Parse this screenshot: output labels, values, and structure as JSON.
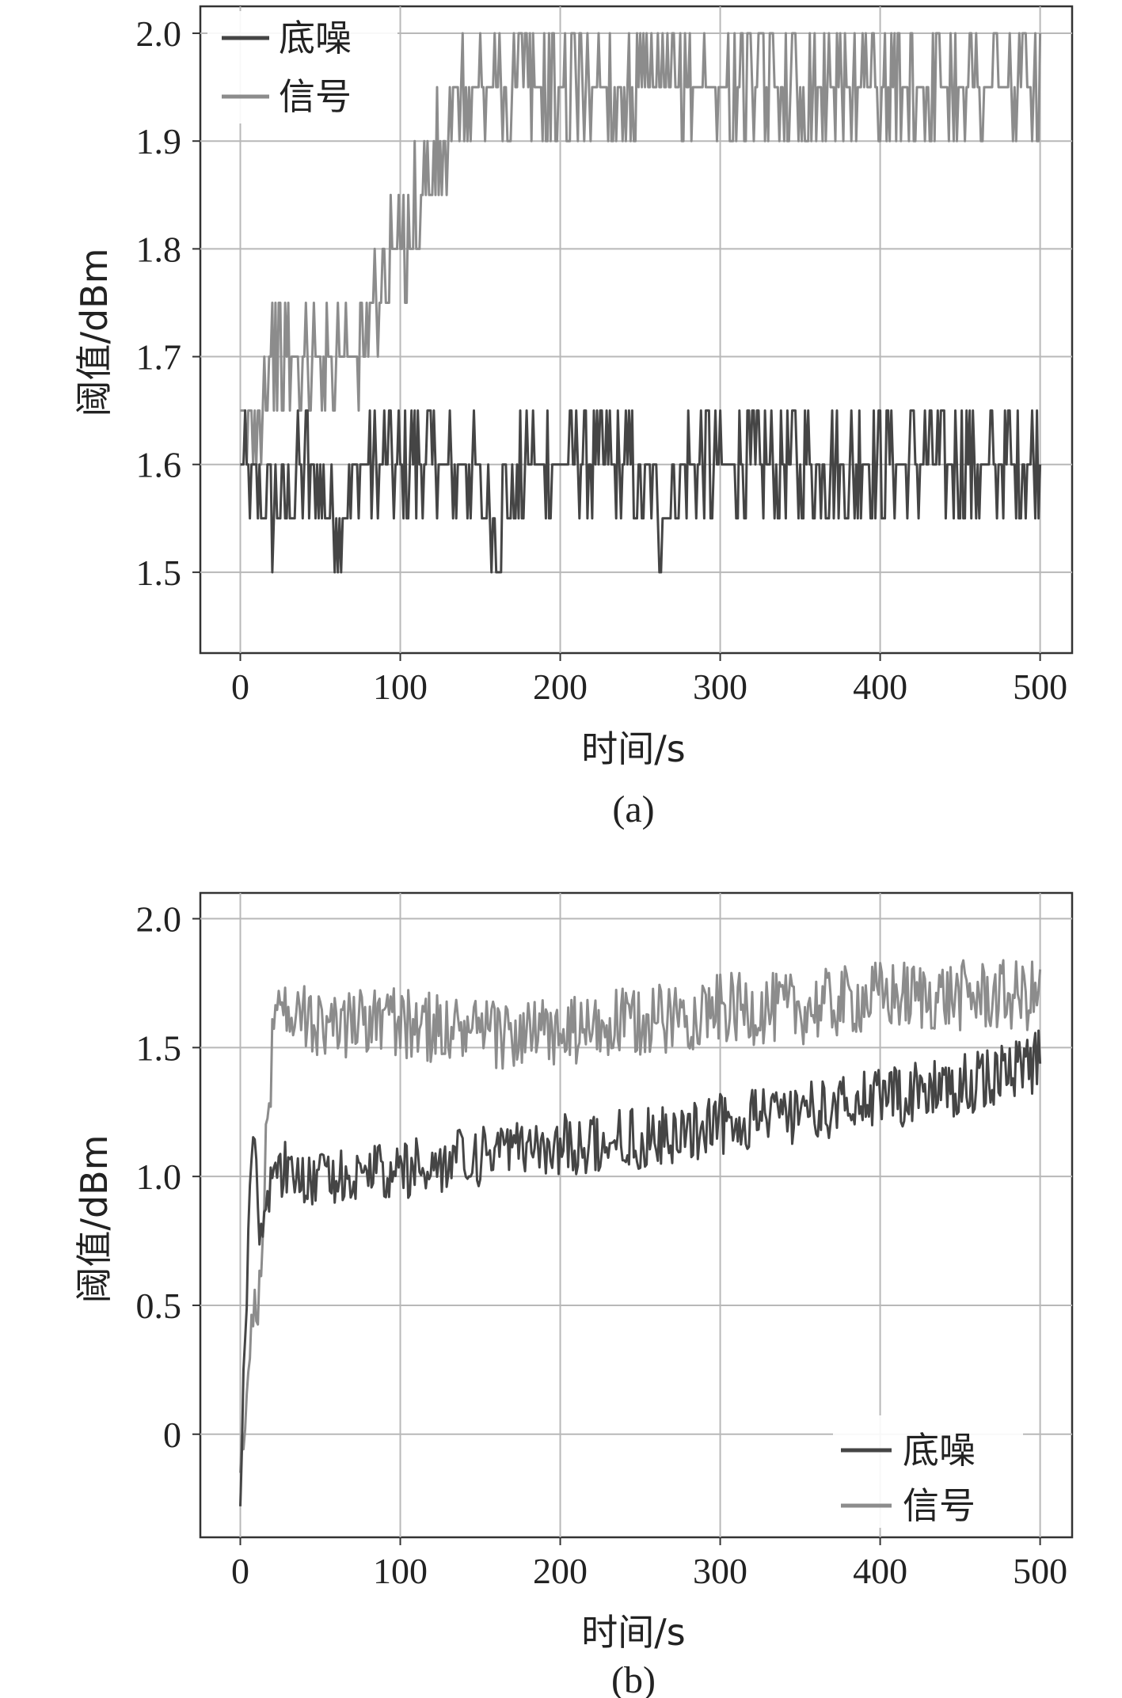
{
  "chart_data": [
    {
      "type": "line",
      "panel": "a",
      "caption": "(a)",
      "xlabel": "时间/s",
      "ylabel": "阈值/dBm",
      "xlim": [
        -25,
        520
      ],
      "ylim": [
        1.425,
        2.025
      ],
      "xticks": [
        0,
        100,
        200,
        300,
        400,
        500
      ],
      "xtick_labels": [
        "0",
        "100",
        "200",
        "300",
        "400",
        "500"
      ],
      "yticks": [
        1.5,
        1.6,
        1.7,
        1.8,
        1.9,
        2.0
      ],
      "ytick_labels": [
        "1.5",
        "1.6",
        "1.7",
        "1.8",
        "1.9",
        "2.0"
      ],
      "grid": true,
      "legend_position": "top-left",
      "series": [
        {
          "name": "底噪",
          "color": "#454545",
          "generator": {
            "kind": "discrete",
            "levels": [
              1.45,
              1.5,
              1.55,
              1.6,
              1.65,
              1.7,
              1.8
            ],
            "base": 1.6,
            "step": 0.05,
            "seed": 7
          },
          "x": [
            0,
            20,
            40,
            60,
            80,
            100,
            120,
            140,
            160,
            180,
            200,
            220,
            240,
            260,
            280,
            300,
            320,
            340,
            360,
            380,
            400,
            420,
            440,
            460,
            480,
            500
          ],
          "y": [
            1.6,
            1.55,
            1.6,
            1.55,
            1.6,
            1.6,
            1.6,
            1.6,
            1.55,
            1.6,
            1.6,
            1.6,
            1.6,
            1.55,
            1.6,
            1.6,
            1.6,
            1.6,
            1.6,
            1.6,
            1.6,
            1.6,
            1.6,
            1.6,
            1.6,
            1.6
          ]
        },
        {
          "name": "信号",
          "color": "#8c8c8c",
          "x": [
            0,
            10,
            20,
            40,
            60,
            80,
            90,
            100,
            110,
            120,
            130,
            140,
            150,
            200,
            250,
            300,
            350,
            400,
            450,
            500
          ],
          "y": [
            1.6,
            1.65,
            1.7,
            1.7,
            1.7,
            1.72,
            1.78,
            1.8,
            1.84,
            1.88,
            1.9,
            1.93,
            1.95,
            1.95,
            1.95,
            1.95,
            1.95,
            1.95,
            1.95,
            1.95
          ]
        }
      ]
    },
    {
      "type": "line",
      "panel": "b",
      "caption": "(b)",
      "xlabel": "时间/s",
      "ylabel": "阈值/dBm",
      "xlim": [
        -25,
        520
      ],
      "ylim": [
        -0.4,
        2.1
      ],
      "xticks": [
        0,
        100,
        200,
        300,
        400,
        500
      ],
      "xtick_labels": [
        "0",
        "100",
        "200",
        "300",
        "400",
        "500"
      ],
      "yticks": [
        0,
        0.5,
        1.0,
        1.5,
        2.0
      ],
      "ytick_labels": [
        "0",
        "0.5",
        "1.0",
        "1.5",
        "2.0"
      ],
      "grid": true,
      "legend_position": "bottom-right",
      "series": [
        {
          "name": "底噪",
          "color": "#454545",
          "x": [
            0,
            2,
            4,
            6,
            8,
            10,
            12,
            15,
            20,
            50,
            100,
            150,
            200,
            250,
            300,
            350,
            400,
            450,
            500
          ],
          "y": [
            -0.3,
            0.2,
            0.6,
            0.9,
            1.1,
            1.0,
            0.85,
            0.85,
            1.05,
            1.0,
            1.02,
            1.08,
            1.12,
            1.15,
            1.2,
            1.25,
            1.3,
            1.35,
            1.45
          ]
        },
        {
          "name": "信号",
          "color": "#8c8c8c",
          "x": [
            0,
            2,
            4,
            6,
            8,
            10,
            12,
            15,
            20,
            25,
            50,
            100,
            150,
            200,
            250,
            300,
            350,
            400,
            450,
            500
          ],
          "y": [
            -0.25,
            0.0,
            0.1,
            0.3,
            0.4,
            0.5,
            0.6,
            1.0,
            1.5,
            1.65,
            1.6,
            1.6,
            1.55,
            1.55,
            1.6,
            1.65,
            1.65,
            1.7,
            1.7,
            1.7
          ]
        }
      ]
    }
  ]
}
